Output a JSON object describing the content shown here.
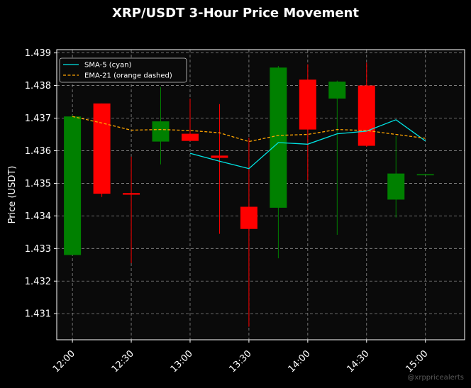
{
  "chart_data": {
    "type": "candlestick",
    "title": "XRP/USDT 3-Hour Price Movement",
    "ylabel": "Price (USDT)",
    "xlabel": "",
    "x_ticks": [
      "12:00",
      "12:30",
      "13:00",
      "13:30",
      "14:00",
      "14:30",
      "15:00"
    ],
    "y_ticks": [
      "1.431",
      "1.432",
      "1.433",
      "1.434",
      "1.435",
      "1.436",
      "1.437",
      "1.438",
      "1.439"
    ],
    "ylim": [
      1.4302,
      1.4391
    ],
    "xlim": [
      "11:52",
      "15:20"
    ],
    "grid": true,
    "legend_position": "top-left",
    "watermark": "@xrppricealerts",
    "candles": [
      {
        "time": "12:00",
        "open": 1.4328,
        "high": 1.4371,
        "low": 1.4328,
        "close": 1.43705
      },
      {
        "time": "12:15",
        "open": 1.43745,
        "high": 1.43745,
        "low": 1.43458,
        "close": 1.43468
      },
      {
        "time": "12:30",
        "open": 1.4347,
        "high": 1.43582,
        "low": 1.43255,
        "close": 1.43465
      },
      {
        "time": "12:45",
        "open": 1.43628,
        "high": 1.43795,
        "low": 1.43558,
        "close": 1.4369
      },
      {
        "time": "13:00",
        "open": 1.43652,
        "high": 1.4376,
        "low": 1.4363,
        "close": 1.4363
      },
      {
        "time": "13:15",
        "open": 1.43585,
        "high": 1.43743,
        "low": 1.43345,
        "close": 1.43578
      },
      {
        "time": "13:30",
        "open": 1.43428,
        "high": 1.4364,
        "low": 1.4306,
        "close": 1.4336
      },
      {
        "time": "13:45",
        "open": 1.43425,
        "high": 1.4386,
        "low": 1.4327,
        "close": 1.43855
      },
      {
        "time": "14:00",
        "open": 1.43818,
        "high": 1.43865,
        "low": 1.4351,
        "close": 1.43665
      },
      {
        "time": "14:15",
        "open": 1.4376,
        "high": 1.43815,
        "low": 1.43342,
        "close": 1.43812
      },
      {
        "time": "14:30",
        "open": 1.438,
        "high": 1.4387,
        "low": 1.43612,
        "close": 1.43615
      },
      {
        "time": "14:45",
        "open": 1.4345,
        "high": 1.43645,
        "low": 1.43395,
        "close": 1.4353
      },
      {
        "time": "15:00",
        "open": 1.43528,
        "high": 1.43528,
        "low": 1.43528,
        "close": 1.43528
      }
    ],
    "series": [
      {
        "name": "SMA-5 (cyan)",
        "color": "#00e5e5",
        "style": "solid",
        "x": [
          "13:00",
          "13:15",
          "13:30",
          "13:45",
          "14:00",
          "14:15",
          "14:30",
          "14:45",
          "15:00"
        ],
        "values": [
          1.43592,
          1.43568,
          1.43545,
          1.43625,
          1.4362,
          1.43652,
          1.4366,
          1.43695,
          1.4363
        ]
      },
      {
        "name": "EMA-21 (orange dashed)",
        "color": "#ffa500",
        "style": "dashed",
        "x": [
          "12:00",
          "12:15",
          "12:30",
          "12:45",
          "13:00",
          "13:15",
          "13:30",
          "13:45",
          "14:00",
          "14:15",
          "14:30",
          "14:45",
          "15:00"
        ],
        "values": [
          1.43705,
          1.43685,
          1.43663,
          1.43665,
          1.43662,
          1.43655,
          1.43628,
          1.43647,
          1.4365,
          1.43665,
          1.43662,
          1.4365,
          1.43638
        ]
      }
    ],
    "colors": {
      "up": "#008000",
      "down": "#ff0000",
      "background": "#000000",
      "plot_background": "#0a0a0a",
      "grid": "#8c8c8c",
      "text": "#ffffff"
    }
  }
}
